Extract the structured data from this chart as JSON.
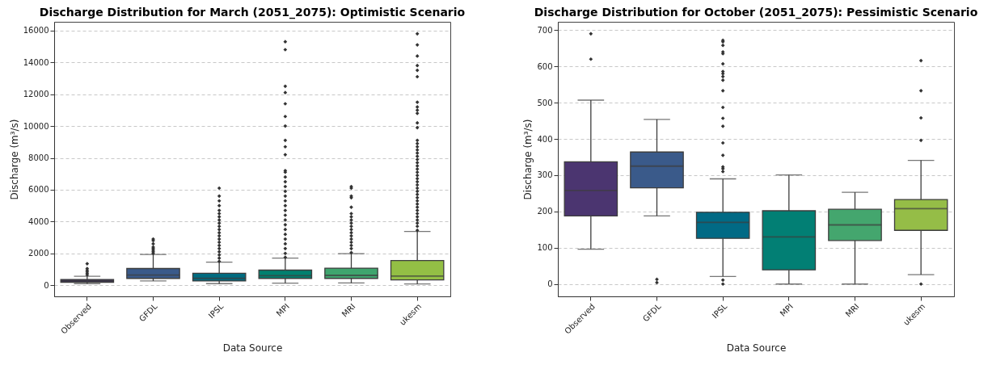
{
  "chart_data": [
    {
      "type": "box",
      "title": "Discharge Distribution for March (2051_2075): Optimistic Scenario",
      "xlabel": "Data Source",
      "ylabel": "Discharge (m³/s)",
      "categories": [
        "Observed",
        "GFDL",
        "IPSL",
        "MPI",
        "MRI",
        "ukesm"
      ],
      "colors": [
        "#3b2f5a",
        "#3a5a8a",
        "#006b80",
        "#00806f",
        "#3fa56e",
        "#93bf45"
      ],
      "ylim": [
        -700,
        16550
      ],
      "yticks": [
        0,
        2000,
        4000,
        6000,
        8000,
        10000,
        12000,
        14000,
        16000
      ],
      "grid": "y",
      "marker": "diamond",
      "boxes": [
        {
          "low": 100,
          "q1": 180,
          "median": 270,
          "q3": 360,
          "high": 560,
          "outliers": [
            650,
            750,
            850,
            950,
            1050,
            1350
          ]
        },
        {
          "low": 270,
          "q1": 430,
          "median": 640,
          "q3": 1050,
          "high": 1930,
          "outliers": [
            2000,
            2100,
            2200,
            2300,
            2400,
            2600,
            2800,
            2900
          ]
        },
        {
          "low": 100,
          "q1": 270,
          "median": 430,
          "q3": 750,
          "high": 1450,
          "outliers": [
            1500,
            1700,
            1900,
            2100,
            2300,
            2500,
            2700,
            2900,
            3100,
            3300,
            3500,
            3700,
            3900,
            4100,
            4300,
            4500,
            4700,
            5000,
            5300,
            5600,
            6100
          ]
        },
        {
          "low": 130,
          "q1": 430,
          "median": 600,
          "q3": 950,
          "high": 1700,
          "outliers": [
            1750,
            2000,
            2300,
            2600,
            2900,
            3200,
            3500,
            3800,
            4100,
            4400,
            4700,
            5000,
            5300,
            5600,
            5900,
            6200,
            6500,
            6800,
            7100,
            7200,
            8200,
            8700,
            9100,
            10000,
            10600,
            11400,
            12100,
            12500,
            14800,
            15300
          ]
        },
        {
          "low": 140,
          "q1": 430,
          "median": 620,
          "q3": 1070,
          "high": 1980,
          "outliers": [
            2050,
            2300,
            2500,
            2700,
            2900,
            3100,
            3300,
            3500,
            3700,
            3900,
            4100,
            4300,
            4500,
            4900,
            5500,
            5600,
            6100,
            6200
          ]
        },
        {
          "low": 80,
          "q1": 330,
          "median": 570,
          "q3": 1550,
          "high": 3380,
          "outliers": [
            3450,
            3700,
            3900,
            4100,
            4300,
            4500,
            4700,
            4900,
            5100,
            5300,
            5500,
            5700,
            5900,
            6100,
            6300,
            6500,
            6700,
            6900,
            7100,
            7300,
            7500,
            7700,
            7900,
            8100,
            8300,
            8500,
            8700,
            8900,
            9100,
            9900,
            10200,
            10800,
            11000,
            11200,
            11500,
            13100,
            13500,
            13800,
            14400,
            15100,
            15800
          ]
        }
      ]
    },
    {
      "type": "box",
      "title": "Discharge Distribution for October (2051_2075): Pessimistic Scenario",
      "xlabel": "Data Source",
      "ylabel": "Discharge (m³/s)",
      "categories": [
        "Observed",
        "GFDL",
        "IPSL",
        "MPI",
        "MRI",
        "ukesm"
      ],
      "colors": [
        "#4b3570",
        "#3a5a8a",
        "#016a85",
        "#027f74",
        "#44a66e",
        "#95bd47"
      ],
      "ylim": [
        -34,
        723
      ],
      "yticks": [
        0,
        100,
        200,
        300,
        400,
        500,
        600,
        700
      ],
      "grid": "y",
      "marker": "diamond",
      "boxes": [
        {
          "low": 96,
          "q1": 188,
          "median": 258,
          "q3": 337,
          "high": 507,
          "outliers": [
            620,
            690
          ]
        },
        {
          "low": 188,
          "q1": 265,
          "median": 325,
          "q3": 364,
          "high": 454,
          "outliers": [
            4,
            13
          ]
        },
        {
          "low": 21,
          "q1": 126,
          "median": 170,
          "q3": 198,
          "high": 290,
          "outliers": [
            0,
            11,
            310,
            318,
            323,
            355,
            389,
            435,
            457,
            487,
            533,
            562,
            572,
            580,
            586,
            607,
            635,
            640,
            658,
            668,
            672
          ]
        },
        {
          "low": 0,
          "q1": 39,
          "median": 130,
          "q3": 202,
          "high": 301
        },
        {
          "low": 0,
          "q1": 120,
          "median": 163,
          "q3": 206,
          "high": 253
        },
        {
          "low": 26,
          "q1": 148,
          "median": 208,
          "q3": 233,
          "high": 341,
          "outliers": [
            0,
            396,
            458,
            533,
            616
          ]
        }
      ]
    }
  ]
}
